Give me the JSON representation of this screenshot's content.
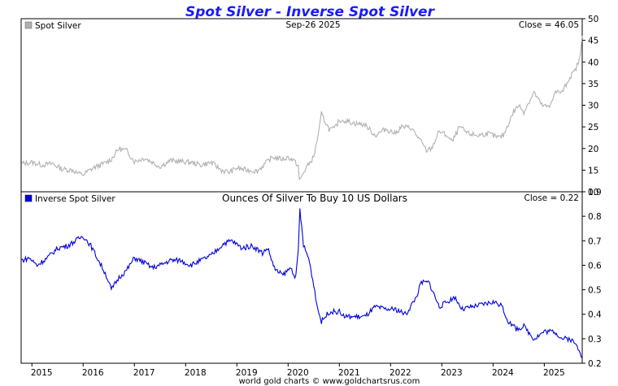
{
  "chart_data": {
    "title": "Spot Silver - Inverse Spot Silver",
    "footer": "world gold charts © www.goldchartsrus.com",
    "x_ticks": [
      "2015",
      "2016",
      "2017",
      "2018",
      "2019",
      "2020",
      "2021",
      "2022",
      "2023",
      "2024",
      "2025"
    ],
    "x_range": [
      2014.79,
      2025.74
    ],
    "panels": [
      {
        "type": "line",
        "legend": "Spot Silver",
        "date_label": "Sep-26  2025",
        "close_label": "Close = 46.05",
        "subtitle": "",
        "color": "#b0b0b0",
        "ylim": [
          10,
          50
        ],
        "y_ticks": [
          "10",
          "15",
          "20",
          "25",
          "30",
          "35",
          "40",
          "45",
          "50"
        ],
        "series": {
          "x": [
            2014.8,
            2015.0,
            2015.2,
            2015.4,
            2015.6,
            2015.8,
            2015.9,
            2016.0,
            2016.2,
            2016.4,
            2016.55,
            2016.7,
            2016.85,
            2017.0,
            2017.2,
            2017.4,
            2017.5,
            2017.7,
            2017.9,
            2018.1,
            2018.3,
            2018.5,
            2018.7,
            2018.85,
            2019.0,
            2019.2,
            2019.4,
            2019.55,
            2019.7,
            2019.9,
            2020.0,
            2020.1,
            2020.2,
            2020.22,
            2020.35,
            2020.5,
            2020.6,
            2020.65,
            2020.8,
            2020.9,
            2021.0,
            2021.1,
            2021.3,
            2021.5,
            2021.7,
            2021.9,
            2022.1,
            2022.2,
            2022.4,
            2022.6,
            2022.7,
            2022.8,
            2022.95,
            2023.1,
            2023.2,
            2023.35,
            2023.5,
            2023.7,
            2023.9,
            2024.1,
            2024.2,
            2024.4,
            2024.5,
            2024.6,
            2024.8,
            2024.95,
            2025.1,
            2025.2,
            2025.35,
            2025.5,
            2025.6,
            2025.7,
            2025.74
          ],
          "y": [
            16.5,
            16.8,
            16.2,
            16.5,
            15.2,
            15.0,
            14.2,
            14.0,
            15.5,
            16.5,
            17.5,
            20.0,
            19.5,
            17.0,
            17.8,
            16.5,
            15.8,
            17.2,
            17.0,
            16.8,
            16.2,
            16.8,
            15.0,
            14.5,
            15.5,
            15.0,
            14.8,
            16.5,
            18.0,
            17.5,
            18.0,
            17.3,
            16.0,
            12.5,
            15.5,
            18.0,
            24.0,
            28.0,
            24.5,
            24.5,
            26.5,
            26.5,
            25.8,
            25.5,
            23.0,
            24.5,
            23.5,
            25.0,
            24.8,
            21.5,
            19.5,
            20.0,
            24.0,
            23.0,
            21.5,
            25.0,
            23.5,
            23.0,
            23.5,
            22.5,
            23.0,
            28.5,
            30.0,
            28.5,
            33.0,
            30.0,
            29.5,
            33.0,
            33.0,
            36.5,
            38.0,
            41.0,
            46.05
          ]
        }
      },
      {
        "type": "line",
        "legend": "Inverse Spot Silver",
        "subtitle": "Ounces Of Silver To Buy 10 US Dollars",
        "close_label": "Close = 0.22",
        "date_label": "",
        "color": "#0000dd",
        "ylim": [
          0.2,
          0.9
        ],
        "y_ticks": [
          "0.2",
          "0.3",
          "0.4",
          "0.5",
          "0.6",
          "0.7",
          "0.8",
          "0.9"
        ],
        "series": {
          "x": [
            2014.8,
            2014.95,
            2015.1,
            2015.3,
            2015.5,
            2015.7,
            2015.85,
            2016.0,
            2016.15,
            2016.3,
            2016.45,
            2016.55,
            2016.7,
            2016.85,
            2017.0,
            2017.2,
            2017.35,
            2017.5,
            2017.7,
            2017.9,
            2018.1,
            2018.3,
            2018.5,
            2018.6,
            2018.75,
            2018.9,
            2019.1,
            2019.3,
            2019.5,
            2019.6,
            2019.75,
            2019.9,
            2020.05,
            2020.15,
            2020.2,
            2020.23,
            2020.3,
            2020.4,
            2020.5,
            2020.58,
            2020.65,
            2020.8,
            2021.0,
            2021.1,
            2021.3,
            2021.5,
            2021.7,
            2021.9,
            2022.1,
            2022.3,
            2022.5,
            2022.6,
            2022.75,
            2022.95,
            2023.1,
            2023.25,
            2023.4,
            2023.6,
            2023.8,
            2024.0,
            2024.15,
            2024.3,
            2024.45,
            2024.6,
            2024.8,
            2025.0,
            2025.2,
            2025.35,
            2025.5,
            2025.6,
            2025.7,
            2025.74
          ],
          "y": [
            0.62,
            0.63,
            0.6,
            0.63,
            0.67,
            0.68,
            0.7,
            0.72,
            0.68,
            0.62,
            0.56,
            0.5,
            0.55,
            0.58,
            0.63,
            0.61,
            0.59,
            0.6,
            0.62,
            0.62,
            0.6,
            0.62,
            0.64,
            0.66,
            0.69,
            0.7,
            0.67,
            0.68,
            0.65,
            0.67,
            0.58,
            0.56,
            0.59,
            0.55,
            0.66,
            0.83,
            0.68,
            0.63,
            0.52,
            0.42,
            0.37,
            0.41,
            0.41,
            0.39,
            0.39,
            0.39,
            0.43,
            0.42,
            0.42,
            0.4,
            0.47,
            0.53,
            0.53,
            0.43,
            0.45,
            0.47,
            0.42,
            0.43,
            0.44,
            0.45,
            0.44,
            0.37,
            0.34,
            0.35,
            0.3,
            0.33,
            0.33,
            0.3,
            0.3,
            0.28,
            0.25,
            0.22
          ]
        }
      }
    ]
  }
}
